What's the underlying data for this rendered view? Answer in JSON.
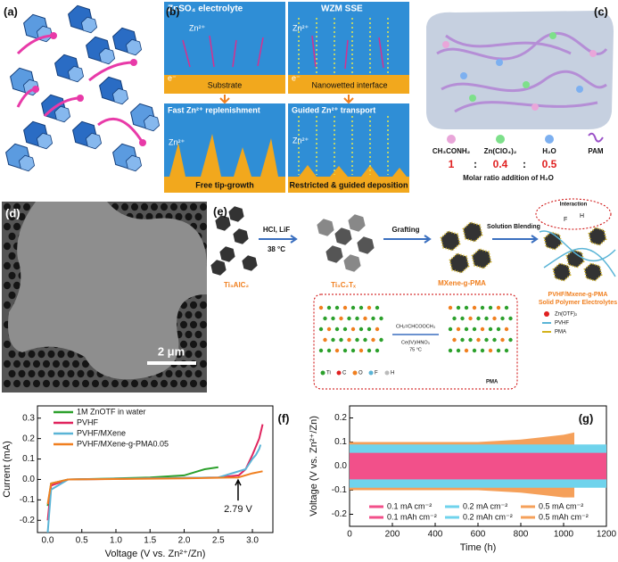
{
  "panels": {
    "a": {
      "label": "(a)"
    },
    "b": {
      "label": "(b)",
      "left_title": "ZnSO₄ electrolyte",
      "right_title": "WZM SSE",
      "ion": "Zn²⁺",
      "electron": "e⁻",
      "substrate": "Substrate",
      "interface": "Nanowetted interface",
      "left_bottom": "Fast Zn²⁺ replenishment",
      "right_bottom": "Guided Zn²⁺ transport",
      "left_caption": "Free tip-growth",
      "right_caption": "Restricted & guided deposition"
    },
    "c": {
      "label": "(c)",
      "components": [
        "CH₃CONH₂",
        "Zn(ClO₄)₂",
        "H₂O",
        "PAM"
      ],
      "ratio": [
        "1",
        ":",
        "0.4",
        ":",
        "0.5"
      ],
      "caption": "Molar ratio addition of H₂O"
    },
    "d": {
      "label": "(d)",
      "scale_bar": "2 μm"
    },
    "e": {
      "label": "(e)",
      "step1": "HCl, LiF",
      "temp1": "38 °C",
      "step2": "Grafting",
      "step3": "Solution Blending",
      "mat1": "Ti₃AlC₂",
      "mat2": "Ti₃C₂Tₓ",
      "mat3": "MXene-g-PMA",
      "product": "PVHF/Mxene-g-PMA",
      "product2": "Solid Polymer Electrolytes",
      "interaction": "Interaction",
      "f": "F",
      "h": "H",
      "legend": [
        "Zn(OTF)₂",
        "PVHF",
        "PMA"
      ],
      "monomer": "CH₂=CHCOOCH₃",
      "catalyst": "Ce(IV)/HNO₃",
      "temp2": "75 °C",
      "atoms": [
        "Ti",
        "C",
        "O",
        "F",
        "H"
      ],
      "pma": "PMA"
    }
  },
  "chart_data": [
    {
      "type": "line",
      "label": "(f)",
      "xlabel": "Voltage (V vs. Zn²⁺/Zn)",
      "ylabel": "Current (mA)",
      "xlim": [
        -0.15,
        3.3
      ],
      "ylim": [
        -0.26,
        0.36
      ],
      "xticks": [
        {
          "value": 0,
          "label": "0.0"
        },
        0.5,
        {
          "value": 1,
          "label": "1.0"
        },
        1.5,
        {
          "value": 2,
          "label": "2.0"
        },
        2.5,
        {
          "value": 3,
          "label": "3.0"
        }
      ],
      "yticks": [
        -0.2,
        -0.1,
        {
          "value": 0,
          "label": "0.0"
        },
        0.1,
        0.2,
        0.3
      ],
      "annotation": {
        "text": "2.79 V",
        "x": 2.79,
        "y": 0.01
      },
      "series": [
        {
          "name": "1M ZnOTF in water",
          "color": "#2ca02c",
          "x": [
            0,
            0.05,
            0.3,
            1.0,
            1.5,
            2.0,
            2.2,
            2.3,
            2.5
          ],
          "values": [
            -0.13,
            -0.02,
            0,
            0.005,
            0.01,
            0.02,
            0.04,
            0.05,
            0.06
          ]
        },
        {
          "name": "PVHF",
          "color": "#e0245e",
          "x": [
            0,
            0.05,
            0.3,
            1.5,
            2.5,
            2.8,
            2.9,
            3.0,
            3.1,
            3.15
          ],
          "values": [
            -0.2,
            -0.03,
            0,
            0.005,
            0.01,
            0.02,
            0.05,
            0.12,
            0.2,
            0.27
          ]
        },
        {
          "name": "PVHF/MXene",
          "color": "#5ab4d6",
          "x": [
            0,
            0.05,
            0.3,
            2.5,
            2.9,
            3.0,
            3.05,
            3.1,
            3.12
          ],
          "values": [
            -0.26,
            -0.05,
            0,
            0.01,
            0.05,
            0.1,
            0.12,
            0.15,
            0.17
          ]
        },
        {
          "name": "PVHF/MXene-g-PMA0.05",
          "color": "#f07f1f",
          "x": [
            0,
            0.05,
            0.3,
            2.0,
            2.79,
            3.0,
            3.15
          ],
          "values": [
            -0.12,
            -0.02,
            0,
            0.005,
            0.01,
            0.03,
            0.04
          ]
        }
      ]
    },
    {
      "type": "band",
      "label": "(g)",
      "xlabel": "Time (h)",
      "ylabel": "Voltage (V vs. Zn²⁺/Zn)",
      "xlim": [
        0,
        1200
      ],
      "ylim": [
        -0.25,
        0.25
      ],
      "xticks": [
        0,
        200,
        400,
        600,
        800,
        1000,
        1200
      ],
      "yticks": [
        -0.2,
        -0.1,
        {
          "value": 0,
          "label": "0.0"
        },
        0.1,
        0.2
      ],
      "series": [
        {
          "name": "0.5 mA cm⁻²",
          "capacity": "0.5 mAh cm⁻²",
          "color": "#f5a05a",
          "x": [
            0,
            200,
            400,
            600,
            800,
            900,
            1000,
            1050
          ],
          "values": [
            0.1,
            0.1,
            0.1,
            0.1,
            0.11,
            0.12,
            0.13,
            0.14
          ],
          "lower": [
            -0.1,
            -0.1,
            -0.1,
            -0.1,
            -0.11,
            -0.12,
            -0.13,
            -0.13
          ]
        },
        {
          "name": "0.2 mA cm⁻²",
          "capacity": "0.2 mAh cm⁻²",
          "color": "#6fd3ec",
          "x": [
            0,
            1200
          ],
          "values": [
            0.09,
            0.09
          ],
          "lower": [
            -0.09,
            -0.09
          ]
        },
        {
          "name": "0.1 mA cm⁻²",
          "capacity": "0.1 mAh cm⁻²",
          "color": "#f2508a",
          "x": [
            0,
            1200
          ],
          "values": [
            0.055,
            0.055
          ],
          "lower": [
            -0.055,
            -0.055
          ]
        }
      ]
    }
  ]
}
